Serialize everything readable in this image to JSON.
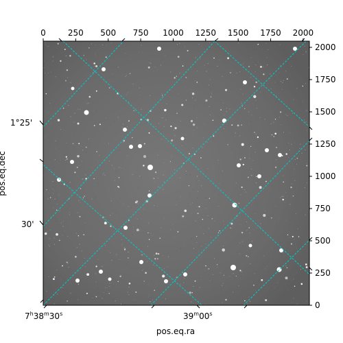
{
  "chart_data": {
    "type": "scatter",
    "title": "",
    "xlabel": "pos.eq.ra",
    "ylabel": "pos.eq.dec",
    "pixel_axes": {
      "x_ticks": [
        "0",
        "250",
        "500",
        "750",
        "1000",
        "1250",
        "1500",
        "1750",
        "2000"
      ],
      "y_ticks": [
        "0",
        "250",
        "500",
        "750",
        "1000",
        "1250",
        "1500",
        "1750",
        "2000"
      ],
      "xlim": [
        0,
        2048
      ],
      "ylim": [
        0,
        2048
      ]
    },
    "world_axes": {
      "ra_ticks": [
        {
          "h": "7",
          "m": "38",
          "s": "30",
          "suffix": "s"
        },
        {
          "h": "",
          "m": "39",
          "s": "00",
          "suffix": "s"
        }
      ],
      "dec_ticks": [
        "1°25'",
        "30'"
      ]
    },
    "grid": true,
    "grid_color": "#00c8c8",
    "background_color": "#6e6e6e",
    "star_color": "#ffffff"
  }
}
